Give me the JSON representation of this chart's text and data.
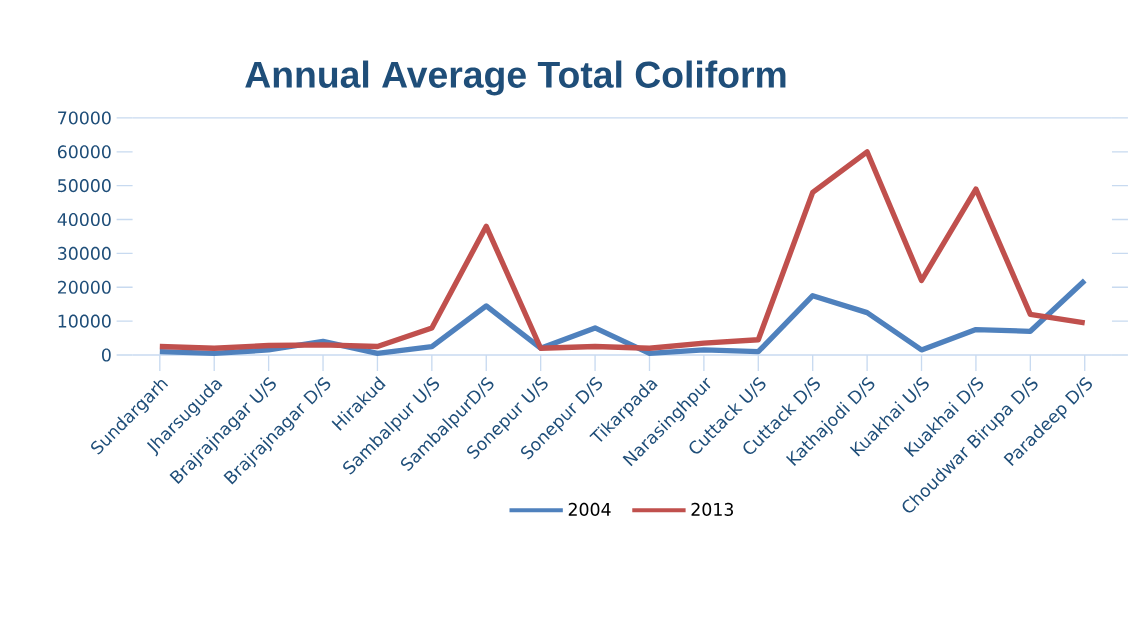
{
  "chart_data": {
    "type": "line",
    "title": "Annual Average Total Coliform",
    "categories": [
      "Sundargarh",
      "Jharsuguda",
      "Brajrajnagar U/S",
      "Brajrajnagar D/S",
      "Hirakud",
      "Sambalpur U/S",
      "SambalpurD/S",
      "Sonepur U/S",
      "Sonepur D/S",
      "Tikarpada",
      "Narasinghpur",
      "Cuttack U/S",
      "Cuttack D/S",
      "Kathajodi D/S",
      "Kuakhai U/S",
      "Kuakhai D/S",
      "Choudwar Birupa D/S",
      "Paradeep D/S"
    ],
    "series": [
      {
        "name": "2004",
        "color": "#4f81bd",
        "values": [
          1000,
          500,
          1500,
          4000,
          500,
          2500,
          14500,
          2000,
          8000,
          500,
          1500,
          1000,
          17500,
          12500,
          1500,
          7500,
          7000,
          22000
        ]
      },
      {
        "name": "2013",
        "color": "#c0504d",
        "values": [
          2500,
          2000,
          2800,
          3000,
          2500,
          8000,
          38000,
          2000,
          2500,
          2000,
          3500,
          4500,
          48000,
          60000,
          22000,
          49000,
          12000,
          9500
        ]
      }
    ],
    "ylim": [
      0,
      70000
    ],
    "yticks": [
      0,
      10000,
      20000,
      30000,
      40000,
      50000,
      60000,
      70000
    ],
    "grid": false,
    "legend": "bottom",
    "marker": "none",
    "line_style": "solid"
  }
}
